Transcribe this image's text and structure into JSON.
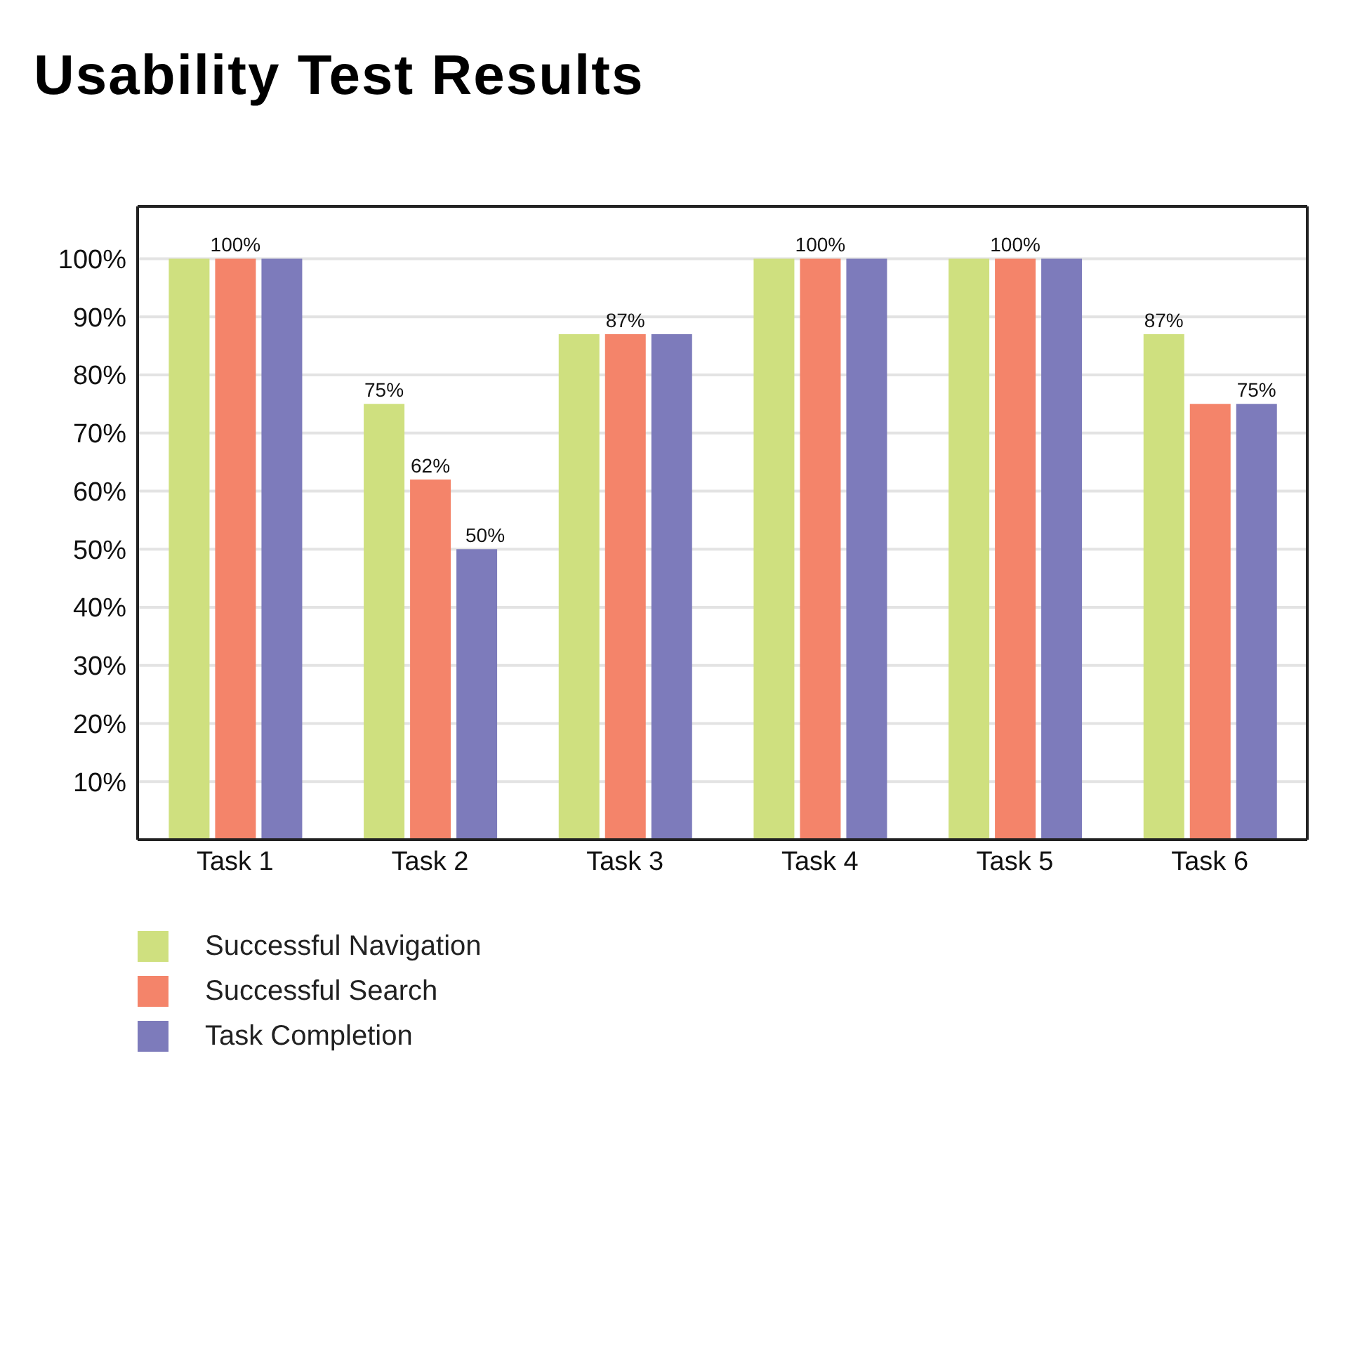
{
  "chart_data": {
    "type": "bar",
    "title": "Usability Test Results",
    "categories": [
      "Task 1",
      "Task 2",
      "Task 3",
      "Task 4",
      "Task 5",
      "Task 6"
    ],
    "series": [
      {
        "name": "Successful Navigation",
        "color": "#cfe07f",
        "values": [
          100,
          75,
          87,
          100,
          100,
          87
        ],
        "value_labels": [
          null,
          "75%",
          null,
          null,
          null,
          "87%"
        ]
      },
      {
        "name": "Successful Search",
        "color": "#f4846a",
        "values": [
          100,
          62,
          87,
          100,
          100,
          75
        ],
        "value_labels": [
          "100%",
          "62%",
          "87%",
          "100%",
          "100%",
          null
        ]
      },
      {
        "name": "Task Completion",
        "color": "#7d7bbb",
        "values": [
          100,
          50,
          87,
          100,
          100,
          75
        ],
        "value_labels": [
          null,
          "50%",
          null,
          null,
          null,
          "75%"
        ]
      }
    ],
    "ylim": [
      0,
      109
    ],
    "yticks": [
      {
        "value": 10,
        "label": "10%"
      },
      {
        "value": 20,
        "label": "20%"
      },
      {
        "value": 30,
        "label": "30%"
      },
      {
        "value": 40,
        "label": "40%"
      },
      {
        "value": 50,
        "label": "50%"
      },
      {
        "value": 60,
        "label": "60%"
      },
      {
        "value": 70,
        "label": "70%"
      },
      {
        "value": 80,
        "label": "80%"
      },
      {
        "value": 90,
        "label": "90%"
      },
      {
        "value": 100,
        "label": "100%"
      }
    ],
    "grid": "y",
    "legend": "bottom left"
  }
}
